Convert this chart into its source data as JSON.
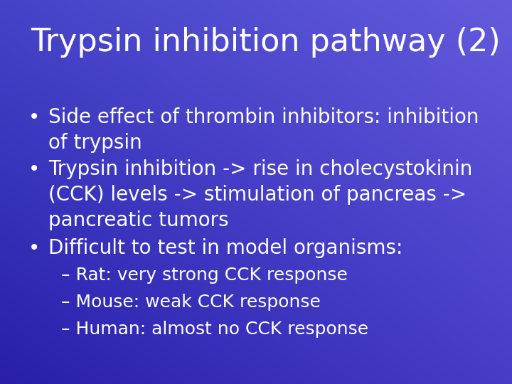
{
  "title": "Trypsin inhibition pathway (2)",
  "title_fontsize": 32,
  "title_color": "#ffffff",
  "text_color": "#ffffff",
  "bullet_fontsize": 20,
  "sub_fontsize": 18,
  "bullets": [
    "Side effect of thrombin inhibitors: inhibition\nof trypsin",
    "Trypsin inhibition -> rise in cholecystokinin\n(CCK) levels -> stimulation of pancreas ->\npancreatic tumors",
    "Difficult to test in model organisms:"
  ],
  "sub_bullets": [
    "– Rat: very strong CCK response",
    "– Mouse: weak CCK response",
    "– Human: almost no CCK response"
  ],
  "bg_topleft": [
    68,
    68,
    200
  ],
  "bg_topright": [
    100,
    90,
    220
  ],
  "bg_bottomleft": [
    40,
    30,
    170
  ],
  "bg_bottomright": [
    70,
    60,
    200
  ]
}
